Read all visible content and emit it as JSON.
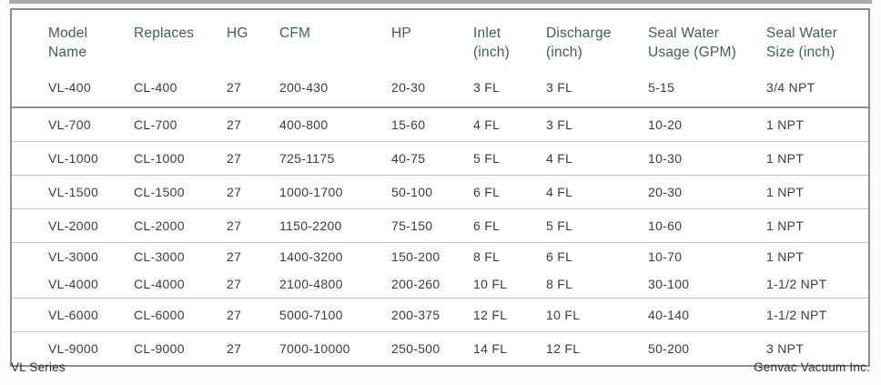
{
  "page": {
    "footer_left": "VL Series",
    "footer_right": "Genvac Vacuum Inc."
  },
  "colors": {
    "header_text": "#3E5F5A",
    "body_text": "#3C3C3C",
    "border_outer": "#8E8E8E",
    "separator": "#C4C4C4",
    "separator_dark": "#8E8E8E"
  },
  "table": {
    "columns": [
      {
        "id": "model-name",
        "label": "Model\nName"
      },
      {
        "id": "replaces",
        "label": "Replaces"
      },
      {
        "id": "hg",
        "label": "HG"
      },
      {
        "id": "cfm",
        "label": "CFM"
      },
      {
        "id": "hp",
        "label": "HP"
      },
      {
        "id": "inlet",
        "label": "Inlet\n(inch)"
      },
      {
        "id": "discharge",
        "label": "Discharge\n(inch)"
      },
      {
        "id": "seal-water-usage",
        "label": "Seal Water\nUsage (GPM)"
      },
      {
        "id": "seal-water-size",
        "label": "Seal Water\nSize (inch)"
      }
    ],
    "rows": [
      [
        "VL-400",
        "CL-400",
        "27",
        "200-430",
        "20-30",
        "3 FL",
        "3 FL",
        "5-15",
        "3/4 NPT"
      ],
      [
        "VL-700",
        "CL-700",
        "27",
        "400-800",
        "15-60",
        "4 FL",
        "3 FL",
        "10-20",
        "1 NPT"
      ],
      [
        "VL-1000",
        "CL-1000",
        "27",
        "725-1175",
        "40-75",
        "5 FL",
        "4 FL",
        "10-30",
        "1 NPT"
      ],
      [
        "VL-1500",
        "CL-1500",
        "27",
        "1000-1700",
        "50-100",
        "6 FL",
        "4 FL",
        "20-30",
        "1 NPT"
      ],
      [
        "VL-2000",
        "CL-2000",
        "27",
        "1150-2200",
        "75-150",
        "6 FL",
        "5 FL",
        "10-60",
        "1 NPT"
      ],
      [
        "VL-3000",
        "CL-3000",
        "27",
        "1400-3200",
        "150-200",
        "8 FL",
        "6 FL",
        "10-70",
        "1 NPT"
      ],
      [
        "VL-4000",
        "CL-4000",
        "27",
        "2100-4800",
        "200-260",
        "10 FL",
        "8 FL",
        "30-100",
        "1-1/2 NPT"
      ],
      [
        "VL-6000",
        "CL-6000",
        "27",
        "5000-7100",
        "200-375",
        "12 FL",
        "10 FL",
        "40-140",
        "1-1/2 NPT"
      ],
      [
        "VL-9000",
        "CL-9000",
        "27",
        "7000-10000",
        "250-500",
        "14 FL",
        "12 FL",
        "50-200",
        "3 NPT"
      ]
    ]
  }
}
